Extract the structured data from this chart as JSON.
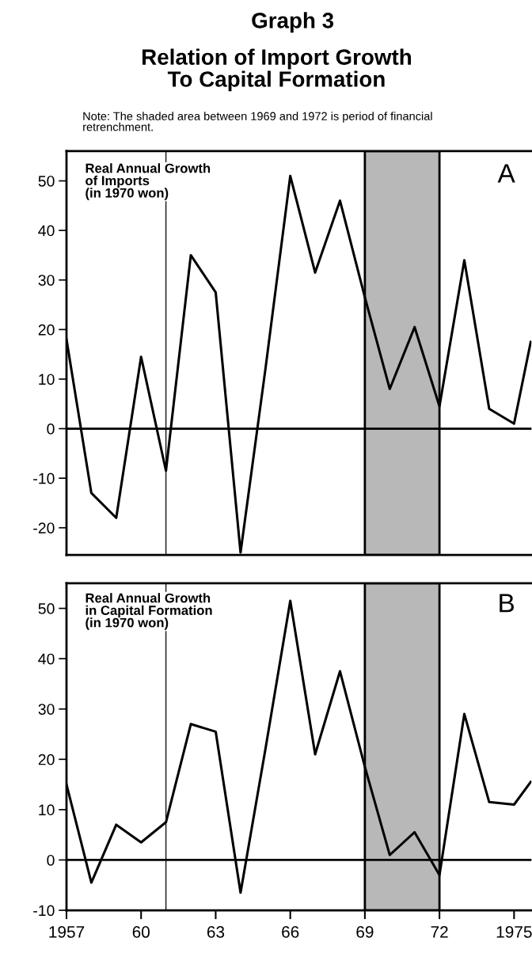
{
  "chart_data": [
    {
      "type": "line",
      "title": "Graph 3",
      "subtitle": "Relation of Import Growth\nTo Capital Formation",
      "annotations": [
        "Real Annual Growth\nof Imports\n(in 1970 won)",
        "A",
        "Note: The shaded area between 1969 and 1972 is period of financial\nretrenchment."
      ],
      "x": [
        1957,
        1958,
        1959,
        1960,
        1961,
        1962,
        1963,
        1964,
        1965,
        1966,
        1967,
        1968,
        1969,
        1970,
        1971,
        1972,
        1973,
        1974,
        1975,
        1975.67
      ],
      "series": [
        {
          "color": "#000000",
          "values": [
            18,
            -13,
            -18,
            14.5,
            -8.5,
            35,
            27.5,
            -25,
            12,
            51,
            31.5,
            46,
            26.5,
            8,
            20.5,
            4.5,
            34,
            4,
            1,
            17.5
          ]
        }
      ],
      "xlim": [
        1957,
        1975.7
      ],
      "ylim": [
        -25.5,
        56
      ],
      "yticks": [
        -20,
        -10,
        0,
        10,
        20,
        30,
        40,
        50
      ],
      "tick_labels": "y",
      "grid": false,
      "legend": false,
      "line_style": "solid",
      "marker": "none",
      "ref_lines": [
        {
          "axis": "y",
          "value": 0,
          "color": "#000000",
          "line_style": "solid"
        },
        {
          "axis": "x",
          "value": 1961,
          "color": "#000000",
          "line_style": "solid"
        }
      ],
      "bands": [
        {
          "axis": "x",
          "from": 1969,
          "to": 1972,
          "color": "#b8b8b8"
        }
      ]
    },
    {
      "type": "line",
      "annotations": [
        "Real Annual Growth\nin Capital Formation\n(in 1970 won)",
        "B"
      ],
      "x": [
        1957,
        1958,
        1959,
        1960,
        1961,
        1962,
        1963,
        1964,
        1965,
        1966,
        1967,
        1968,
        1969,
        1970,
        1971,
        1972,
        1973,
        1974,
        1975,
        1975.67
      ],
      "series": [
        {
          "color": "#000000",
          "values": [
            15,
            -4.5,
            7,
            3.5,
            7.5,
            27,
            25.5,
            -6.5,
            22,
            51.5,
            21,
            37.5,
            18.5,
            1,
            5.5,
            -3,
            29,
            11.5,
            11,
            15.5
          ]
        }
      ],
      "xlim": [
        1957,
        1975.7
      ],
      "ylim": [
        -10,
        55
      ],
      "yticks": [
        -10,
        0,
        10,
        20,
        30,
        40,
        50
      ],
      "xticks": [
        1957,
        {
          "value": 1960,
          "label": "60"
        },
        {
          "value": 1963,
          "label": "63"
        },
        {
          "value": 1966,
          "label": "66"
        },
        {
          "value": 1969,
          "label": "69"
        },
        {
          "value": 1972,
          "label": "72"
        },
        1975
      ],
      "grid": false,
      "legend": false,
      "line_style": "solid",
      "marker": "none",
      "ref_lines": [
        {
          "axis": "y",
          "value": 0,
          "color": "#000000",
          "line_style": "solid"
        },
        {
          "axis": "x",
          "value": 1961,
          "color": "#000000",
          "line_style": "solid"
        }
      ],
      "bands": [
        {
          "axis": "x",
          "from": 1969,
          "to": 1972,
          "color": "#b8b8b8"
        }
      ]
    }
  ]
}
